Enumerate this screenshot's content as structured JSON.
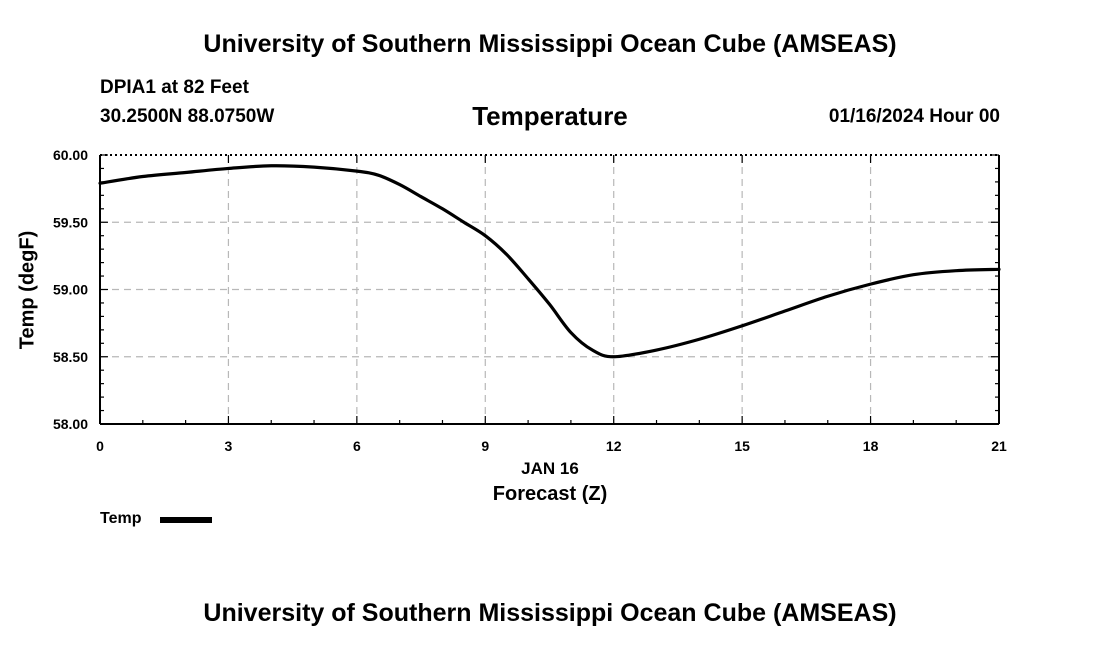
{
  "header": {
    "main_title": "University of Southern Mississippi Ocean Cube (AMSEAS)",
    "station_line": "DPIA1 at 82 Feet",
    "coords_line": "30.2500N  88.0750W",
    "datetime_line": "01/16/2024 Hour 00"
  },
  "footer": {
    "bottom_title": "University of Southern Mississippi Ocean Cube (AMSEAS)"
  },
  "legend": {
    "label": "Temp"
  },
  "chart_data": {
    "type": "line",
    "title": "Temperature",
    "xlabel": "Forecast (Z)",
    "x_date_label": "JAN 16",
    "ylabel": "Temp (degF)",
    "xlim": [
      0,
      21
    ],
    "ylim": [
      58.0,
      60.0
    ],
    "x_ticks": [
      0,
      3,
      6,
      9,
      12,
      15,
      18,
      21
    ],
    "x_tick_labels": [
      "0",
      "3",
      "6",
      "9",
      "12",
      "15",
      "18",
      "21"
    ],
    "y_ticks": [
      58.0,
      58.5,
      59.0,
      59.5,
      60.0
    ],
    "y_tick_labels": [
      "58.00",
      "58.50",
      "59.00",
      "59.50",
      "60.00"
    ],
    "grid": true,
    "series": [
      {
        "name": "Temp",
        "color": "#000000",
        "x": [
          0,
          1,
          2,
          3,
          4,
          5,
          6,
          6.5,
          7,
          7.5,
          8,
          8.5,
          9,
          9.5,
          10,
          10.5,
          11,
          11.5,
          12,
          13,
          14,
          15,
          16,
          17,
          18,
          19,
          20,
          21
        ],
        "values": [
          59.79,
          59.84,
          59.87,
          59.9,
          59.92,
          59.91,
          59.88,
          59.85,
          59.78,
          59.69,
          59.6,
          59.5,
          59.4,
          59.26,
          59.08,
          58.89,
          58.68,
          58.55,
          58.5,
          58.55,
          58.63,
          58.73,
          58.84,
          58.95,
          59.04,
          59.11,
          59.14,
          59.15
        ]
      }
    ]
  }
}
